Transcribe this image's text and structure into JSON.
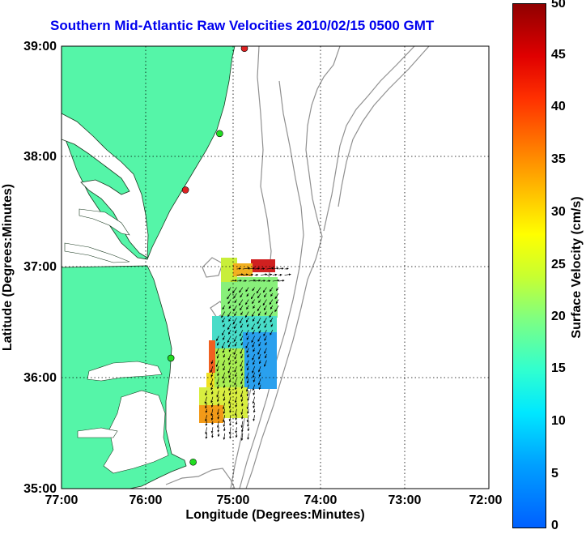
{
  "title": "Southern Mid-Atlantic Raw Velocities 2010/02/15 0500 GMT",
  "x_axis": {
    "label": "Longitude (Degrees:Minutes)",
    "ticks": [
      "77:00",
      "76:00",
      "75:00",
      "74:00",
      "73:00",
      "72:00"
    ]
  },
  "y_axis": {
    "label": "Latitude (Degrees:Minutes)",
    "ticks": [
      "39:00",
      "38:00",
      "37:00",
      "36:00",
      "35:00"
    ]
  },
  "colorbar": {
    "label": "Surface Velocity (cm/s)",
    "ticks": [
      "50",
      "45",
      "40",
      "35",
      "30",
      "25",
      "20",
      "15",
      "10",
      "5",
      "0"
    ],
    "min": 0,
    "max": 50
  },
  "colors": {
    "land": "#55f5a8",
    "water": "#ffffff",
    "title": "#0000ee",
    "bathymetry": "#909090",
    "station_green": "#22dd22",
    "station_red": "#dd2222"
  },
  "stations": [
    {
      "lon": -74.86,
      "lat": 38.98,
      "status": "red"
    },
    {
      "lon": -75.15,
      "lat": 38.21,
      "status": "green"
    },
    {
      "lon": -75.55,
      "lat": 37.7,
      "status": "red"
    },
    {
      "lon": -75.72,
      "lat": 36.18,
      "status": "green"
    },
    {
      "lon": -75.46,
      "lat": 35.24,
      "status": "green"
    }
  ],
  "chart_data": {
    "type": "heatmap",
    "title": "Southern Mid-Atlantic Raw Velocities 2010/02/15 0500 GMT",
    "xlabel": "Longitude (Degrees:Minutes)",
    "ylabel": "Latitude (Degrees:Minutes)",
    "xlim": [
      -77,
      -72
    ],
    "ylim": [
      35,
      39
    ],
    "velocity_regions": [
      {
        "lon": [
          -75.0,
          -74.55
        ],
        "lat": [
          36.62,
          36.98
        ],
        "speed": 20
      },
      {
        "lon": [
          -75.0,
          -74.9
        ],
        "lat": [
          36.78,
          36.98
        ],
        "speed": 30
      },
      {
        "lon": [
          -74.85,
          -74.65
        ],
        "lat": [
          36.85,
          36.98
        ],
        "speed": 45
      },
      {
        "lon": [
          -75.15,
          -74.55
        ],
        "lat": [
          36.3,
          36.62
        ],
        "speed": 17
      },
      {
        "lon": [
          -75.15,
          -74.9
        ],
        "lat": [
          35.95,
          36.35
        ],
        "speed": 24
      },
      {
        "lon": [
          -74.9,
          -74.55
        ],
        "lat": [
          35.9,
          36.3
        ],
        "speed": 9
      },
      {
        "lon": [
          -75.25,
          -74.85
        ],
        "lat": [
          35.55,
          35.95
        ],
        "speed": 27
      },
      {
        "lon": [
          -75.25,
          -75.1
        ],
        "lat": [
          35.62,
          35.75
        ],
        "speed": 35
      },
      {
        "lon": [
          -75.2,
          -75.13
        ],
        "lat": [
          36.05,
          36.35
        ],
        "speed": 40
      }
    ],
    "vectors": {
      "lon_range": [
        -75.3,
        -74.3
      ],
      "lat_range": [
        35.5,
        37.0
      ],
      "general_direction": "southwest along shelf, eastward near 37N"
    }
  }
}
